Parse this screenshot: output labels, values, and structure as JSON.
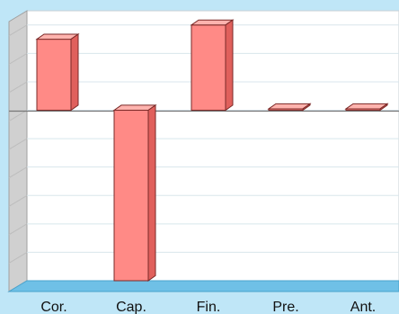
{
  "chart_data": {
    "type": "bar",
    "categories": [
      "Cor.",
      "Cap.",
      "Fin.",
      "Pre.",
      "Ant."
    ],
    "values": [
      100,
      -240,
      120,
      2,
      2
    ],
    "ylim": [
      -240,
      140
    ],
    "grid": true,
    "legend": "none",
    "bar_color": "#ff8a86",
    "bar_side_color": "#e0605c",
    "bar_top_color": "#ffb3ae",
    "plot_background": "#ffffff",
    "back_wall_color": "#ffffff",
    "side_wall_color": "#d0d0d0",
    "floor_color": "#6fc0e6",
    "page_background": "#bfe6f7"
  }
}
